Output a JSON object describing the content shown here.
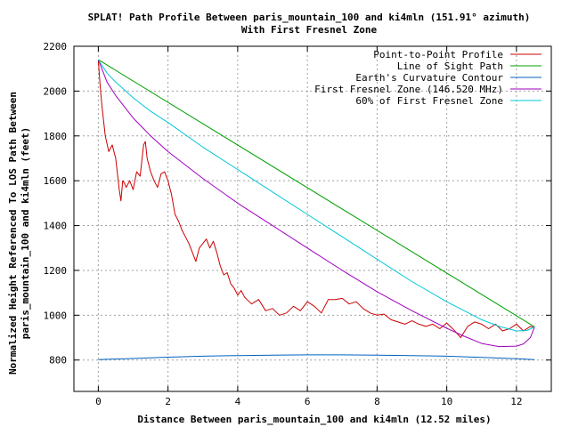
{
  "chart_data": {
    "type": "line",
    "title_line1": "SPLAT! Path Profile Between paris_mountain_100 and ki4mln (151.91° azimuth)",
    "title_line2": "With First Fresnel Zone",
    "xlabel": "Distance Between paris_mountain_100 and ki4mln (12.52 miles)",
    "ylabel_line1": "Normalized Height Referenced To LOS Path Between",
    "ylabel_line2": "paris_mountain_100 and ki4mln (feet)",
    "xlim": [
      -0.7,
      13.0
    ],
    "ylim": [
      660,
      2200
    ],
    "xticks": [
      0,
      2,
      4,
      6,
      8,
      10,
      12
    ],
    "yticks": [
      800,
      1000,
      1200,
      1400,
      1600,
      1800,
      2000,
      2200
    ],
    "grid": true,
    "legend_position": "top-right",
    "series": [
      {
        "name": "Point-to-Point Profile",
        "color": "#cc0000",
        "x": [
          0,
          0.05,
          0.1,
          0.2,
          0.3,
          0.4,
          0.5,
          0.6,
          0.65,
          0.7,
          0.75,
          0.8,
          0.9,
          1.0,
          1.1,
          1.2,
          1.3,
          1.35,
          1.4,
          1.5,
          1.6,
          1.7,
          1.8,
          1.9,
          2.0,
          2.1,
          2.2,
          2.3,
          2.4,
          2.5,
          2.6,
          2.7,
          2.8,
          2.9,
          3.0,
          3.1,
          3.2,
          3.3,
          3.4,
          3.5,
          3.6,
          3.7,
          3.8,
          3.9,
          4.0,
          4.1,
          4.2,
          4.4,
          4.6,
          4.8,
          5.0,
          5.2,
          5.4,
          5.6,
          5.8,
          6.0,
          6.2,
          6.4,
          6.6,
          6.8,
          7.0,
          7.2,
          7.4,
          7.6,
          7.8,
          8.0,
          8.2,
          8.4,
          8.6,
          8.8,
          9.0,
          9.2,
          9.4,
          9.6,
          9.8,
          10.0,
          10.2,
          10.4,
          10.6,
          10.8,
          11.0,
          11.2,
          11.4,
          11.6,
          11.8,
          12.0,
          12.2,
          12.4,
          12.52
        ],
        "y": [
          2137,
          2030,
          1940,
          1800,
          1730,
          1760,
          1700,
          1560,
          1510,
          1600,
          1590,
          1570,
          1600,
          1560,
          1640,
          1620,
          1760,
          1775,
          1700,
          1640,
          1600,
          1570,
          1630,
          1640,
          1600,
          1540,
          1450,
          1420,
          1380,
          1350,
          1320,
          1280,
          1240,
          1300,
          1320,
          1340,
          1300,
          1330,
          1280,
          1220,
          1180,
          1190,
          1140,
          1120,
          1090,
          1110,
          1080,
          1050,
          1070,
          1020,
          1030,
          1000,
          1010,
          1040,
          1020,
          1060,
          1040,
          1010,
          1070,
          1070,
          1075,
          1050,
          1060,
          1030,
          1010,
          1000,
          1005,
          980,
          970,
          960,
          975,
          960,
          950,
          960,
          940,
          965,
          935,
          900,
          950,
          970,
          960,
          940,
          960,
          930,
          940,
          960,
          930,
          950,
          945
        ]
      },
      {
        "name": "Line of Sight Path",
        "color": "#00a000",
        "x": [
          0,
          12.52
        ],
        "y": [
          2140,
          948
        ]
      },
      {
        "name": "Earth's Curvature Contour",
        "color": "#0060c0",
        "x": [
          0,
          1,
          2,
          3,
          4,
          5,
          6,
          7,
          8,
          9,
          10,
          11,
          12,
          12.52
        ],
        "y": [
          802,
          807,
          813,
          817,
          820,
          822,
          823,
          823,
          822,
          820,
          817,
          812,
          806,
          802
        ]
      },
      {
        "name": "First Fresnel Zone (146.520 MHz)",
        "color": "#a000c0",
        "x": [
          0,
          0.25,
          0.5,
          1,
          1.5,
          2,
          3,
          4,
          5,
          6,
          7,
          8,
          9,
          10,
          10.5,
          11,
          11.5,
          12,
          12.2,
          12.4,
          12.52
        ],
        "y": [
          2140,
          2040,
          1980,
          1880,
          1800,
          1730,
          1610,
          1500,
          1400,
          1300,
          1200,
          1105,
          1020,
          942,
          906,
          874,
          860,
          862,
          872,
          900,
          948
        ]
      },
      {
        "name": "60% of First Fresnel Zone",
        "color": "#00c8d8",
        "x": [
          0,
          0.25,
          0.5,
          1,
          1.5,
          2,
          3,
          4,
          5,
          6,
          7,
          8,
          9,
          10,
          11,
          11.5,
          12,
          12.3,
          12.52
        ],
        "y": [
          2140,
          2080,
          2040,
          1970,
          1910,
          1860,
          1750,
          1650,
          1550,
          1450,
          1350,
          1250,
          1150,
          1060,
          980,
          950,
          930,
          932,
          948
        ]
      }
    ]
  }
}
